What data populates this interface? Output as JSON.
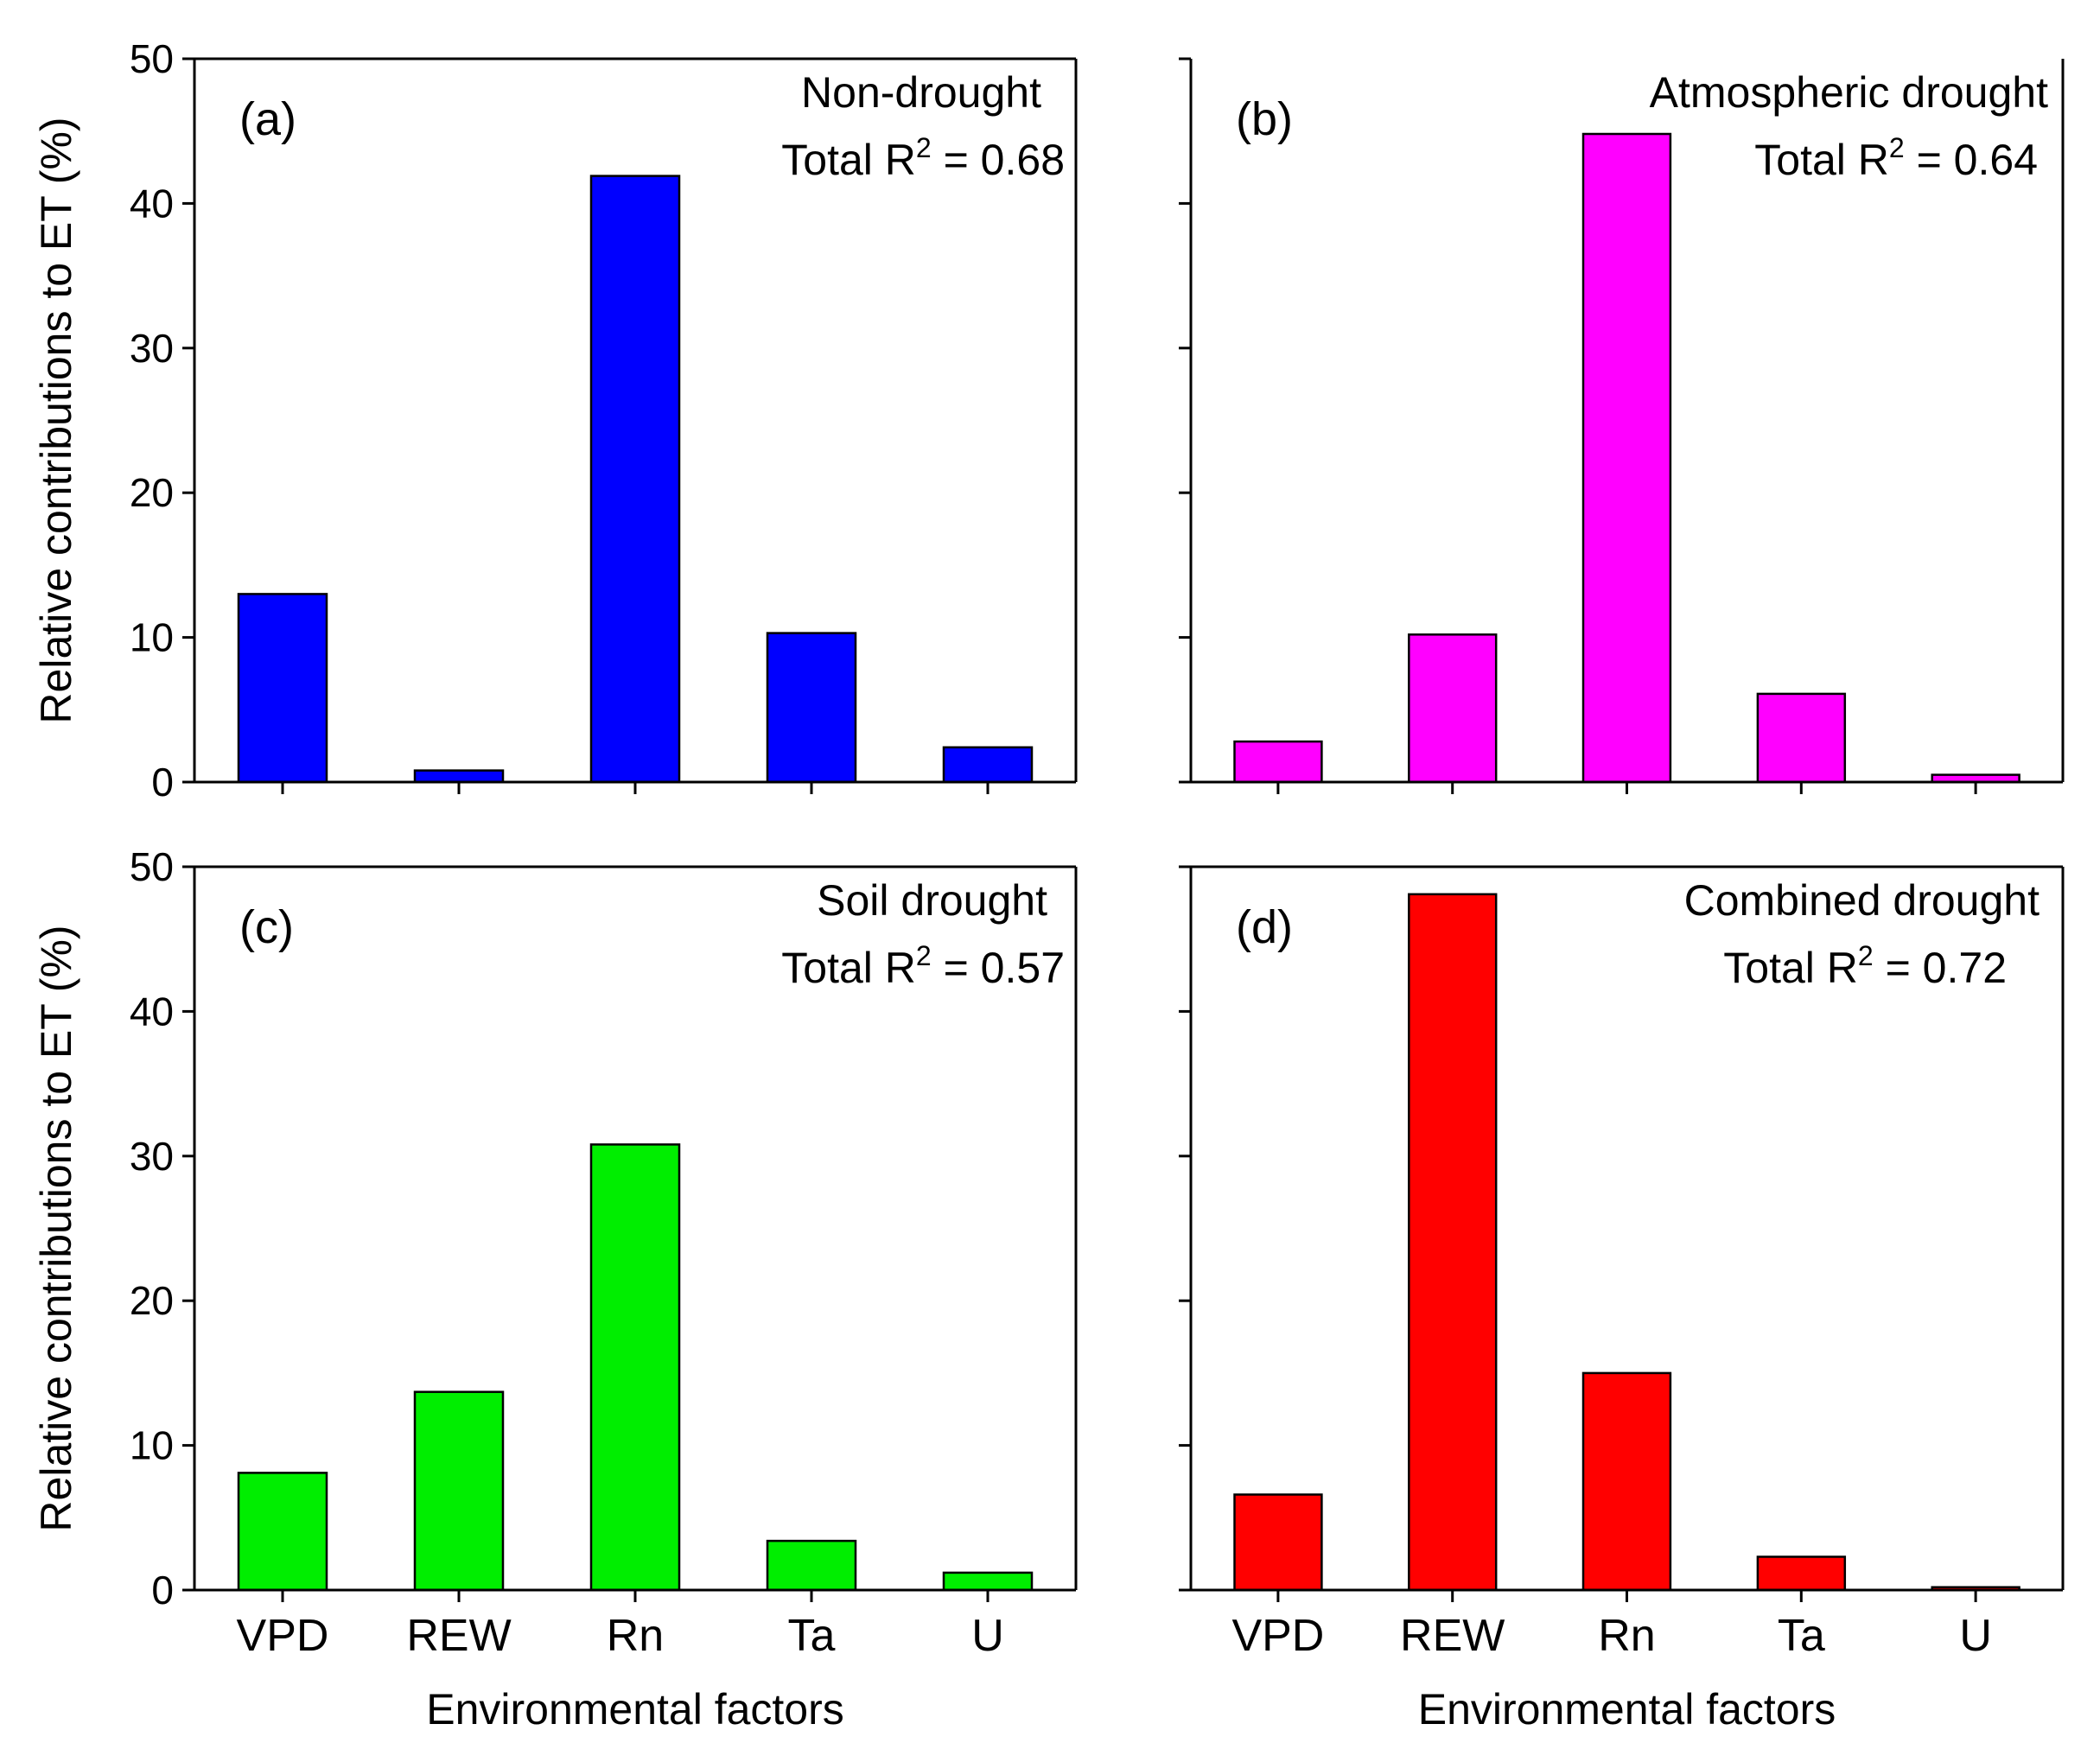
{
  "chart_data": [
    {
      "type": "bar",
      "panel": "(a)",
      "condition": "Non-drought",
      "annotation": "Total R",
      "annotation_sup": "2",
      "annotation_value": " = 0.68",
      "categories": [
        "VPD",
        "REW",
        "Rn",
        "Ta",
        "U"
      ],
      "values": [
        13.0,
        0.8,
        41.9,
        10.3,
        2.4
      ],
      "color": "#0000ff",
      "ylabel": "Relative contributions to ET (%)",
      "xlabel": "",
      "ylim": [
        0,
        50
      ],
      "yticks": [
        "0",
        "10",
        "20",
        "30",
        "40",
        "50"
      ],
      "show_category_labels": false
    },
    {
      "type": "bar",
      "panel": "(b)",
      "condition": "Atmospheric drought",
      "annotation": "Total R",
      "annotation_sup": "2",
      "annotation_value": " = 0.64",
      "categories": [
        "VPD",
        "REW",
        "Rn",
        "Ta",
        "U"
      ],
      "values": [
        2.8,
        10.2,
        44.8,
        6.1,
        0.5
      ],
      "color": "#ff00ff",
      "ylabel": "",
      "xlabel": "",
      "ylim": [
        0,
        50
      ],
      "yticks": [],
      "show_category_labels": false
    },
    {
      "type": "bar",
      "panel": "(c)",
      "condition": "Soil drought",
      "annotation": "Total R",
      "annotation_sup": "2",
      "annotation_value": " = 0.57",
      "categories": [
        "VPD",
        "REW",
        "Rn",
        "Ta",
        "U"
      ],
      "values": [
        8.1,
        13.7,
        30.8,
        3.4,
        1.2
      ],
      "color": "#00ee00",
      "ylabel": "Relative contributions to ET (%)",
      "xlabel": "Environmental factors",
      "ylim": [
        0,
        50
      ],
      "yticks": [
        "0",
        "10",
        "20",
        "30",
        "40",
        "50"
      ],
      "show_category_labels": true
    },
    {
      "type": "bar",
      "panel": "(d)",
      "condition": "Combined drought",
      "annotation": "Total R",
      "annotation_sup": "2",
      "annotation_value": " = 0.72",
      "categories": [
        "VPD",
        "REW",
        "Rn",
        "Ta",
        "U"
      ],
      "values": [
        6.6,
        48.1,
        15.0,
        2.3,
        0.2
      ],
      "color": "#ff0000",
      "ylabel": "",
      "xlabel": "Environmental factors",
      "ylim": [
        0,
        50
      ],
      "yticks": [],
      "show_category_labels": true
    }
  ]
}
